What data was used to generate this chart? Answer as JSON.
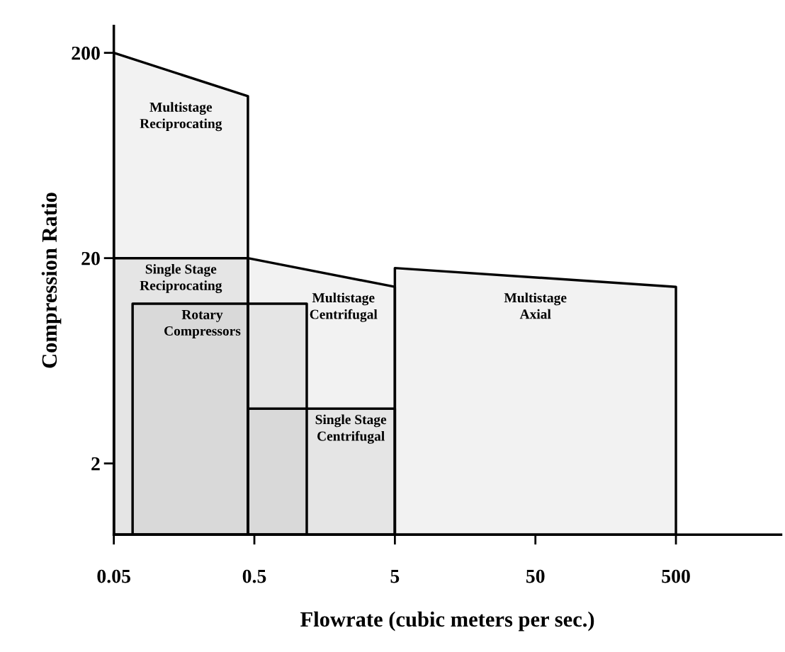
{
  "chart_data": {
    "type": "area",
    "xlabel": "Flowrate (cubic meters per sec.)",
    "ylabel": "Compression Ratio",
    "log": "xy",
    "grid": false,
    "xlim": [
      0.05,
      2800
    ],
    "ylim": [
      0.9,
      270
    ],
    "xticks": [
      0.05,
      0.5,
      5,
      50,
      500
    ],
    "yticks": [
      2,
      20,
      200
    ],
    "series": [
      {
        "name": "Multistage\nReciprocating",
        "color": "#000000",
        "x": [
          0.05,
          0.45
        ],
        "values": [
          200,
          123
        ]
      },
      {
        "name": "Single Stage\nReciprocating",
        "color": "#010101",
        "x": [
          0.05,
          0.45
        ],
        "values": [
          20,
          20
        ]
      },
      {
        "name": "Rotary\nCompressors",
        "color": "#020202",
        "x": [
          0.068,
          1.18
        ],
        "values": [
          12,
          12
        ]
      },
      {
        "name": "Multistage\nCentrifugal",
        "color": "#030303",
        "x": [
          0.45,
          5
        ],
        "values": [
          20,
          14.5
        ]
      },
      {
        "name": "Single Stage\nCentrifugal",
        "color": "#040404",
        "x": [
          0.45,
          5
        ],
        "values": [
          3.7,
          3.7
        ]
      },
      {
        "name": "Multistage\nAxial",
        "color": "#050505",
        "x": [
          5,
          500
        ],
        "values": [
          17.9,
          14.5
        ]
      }
    ]
  }
}
